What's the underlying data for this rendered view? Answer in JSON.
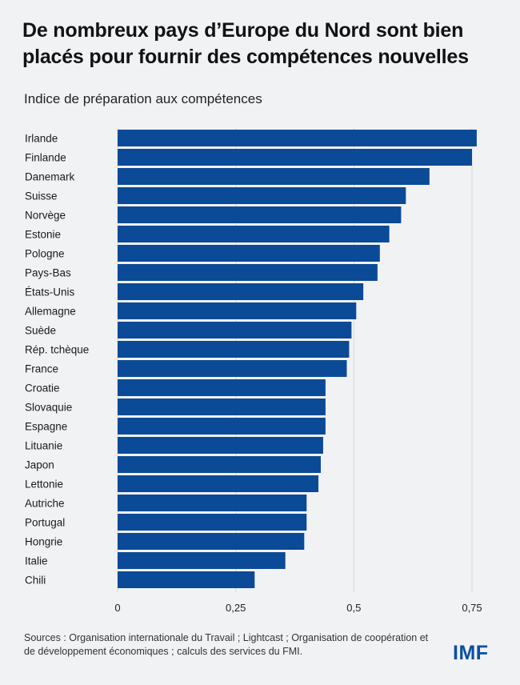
{
  "title": "De nombreux pays d’Europe du Nord sont bien placés pour fournir des compétences nouvelles",
  "subtitle": "Indice de préparation aux compétences",
  "source": "Sources : Organisation internationale du Travail ; Lightcast ; Organisation de coopération et de développement économiques ; calculs des services du FMI.",
  "logo": "IMF",
  "colors": {
    "bar": "#0b4a96",
    "grid": "#d6d8dc",
    "background": "#f1f2f4",
    "logo": "#0b4fa0"
  },
  "chart_data": {
    "type": "bar",
    "orientation": "horizontal",
    "categories": [
      "Irlande",
      "Finlande",
      "Danemark",
      "Suisse",
      "Norvège",
      "Estonie",
      "Pologne",
      "Pays-Bas",
      "États-Unis",
      "Allemagne",
      "Suède",
      "Rép. tchèque",
      "France",
      "Croatie",
      "Slovaquie",
      "Espagne",
      "Lituanie",
      "Japon",
      "Lettonie",
      "Autriche",
      "Portugal",
      "Hongrie",
      "Italie",
      "Chili"
    ],
    "values": [
      0.76,
      0.75,
      0.66,
      0.61,
      0.6,
      0.575,
      0.555,
      0.55,
      0.52,
      0.505,
      0.495,
      0.49,
      0.485,
      0.44,
      0.44,
      0.44,
      0.435,
      0.43,
      0.425,
      0.4,
      0.4,
      0.395,
      0.355,
      0.29
    ],
    "xlim": [
      0,
      0.78
    ],
    "xticks": [
      0,
      0.25,
      0.5,
      0.75
    ],
    "xtick_labels": [
      "0",
      "0,25",
      "0,5",
      "0,75"
    ],
    "grid": true
  }
}
